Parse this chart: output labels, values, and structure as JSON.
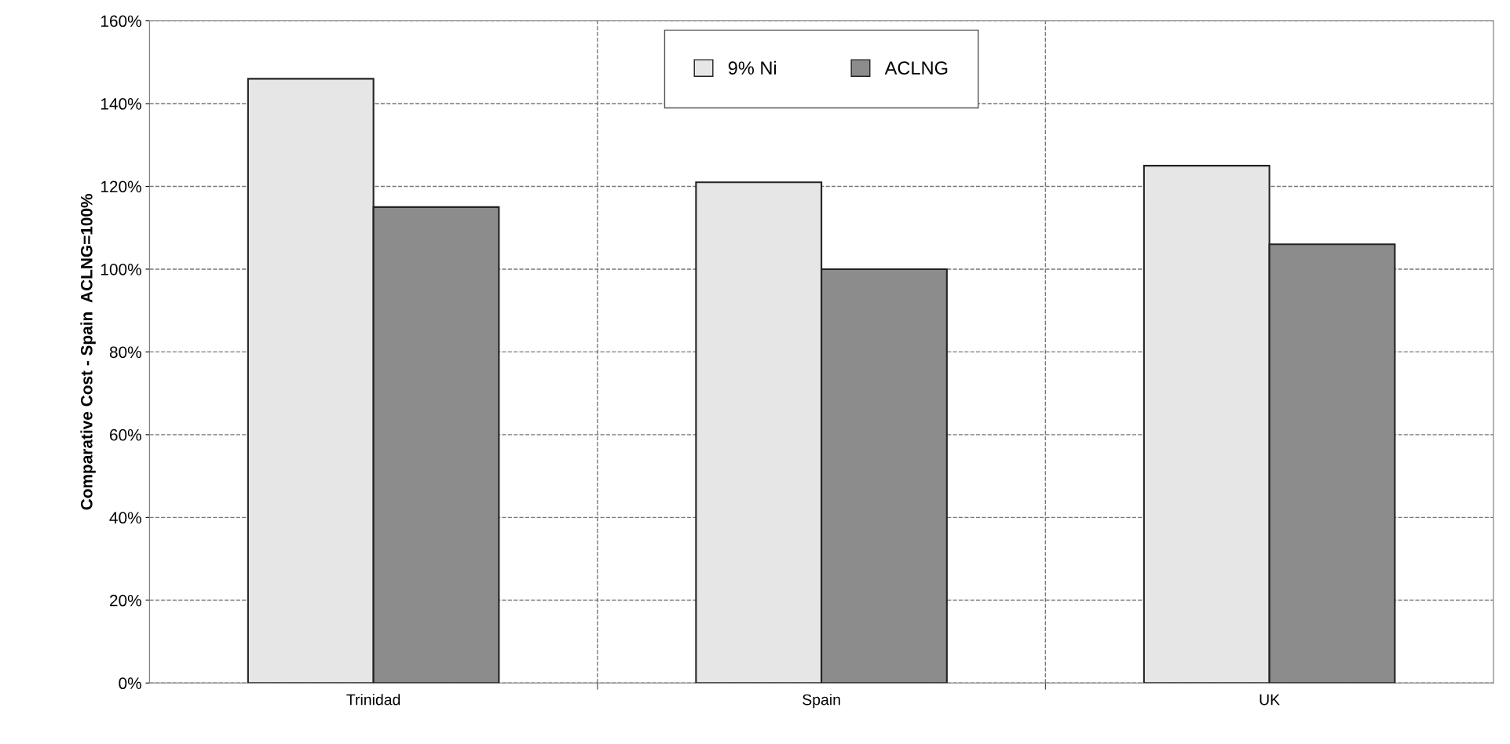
{
  "chart_data": {
    "type": "bar",
    "ylabel": "Comparative Cost - Spain  ACLNG=100%",
    "categories": [
      "Trinidad",
      "Spain",
      "UK"
    ],
    "series": [
      {
        "name": "9% Ni",
        "color": "#e6e6e6",
        "values": [
          146,
          121,
          125
        ]
      },
      {
        "name": "ACLNG",
        "color": "#8c8c8c",
        "values": [
          115,
          100,
          106
        ]
      }
    ],
    "ylim": [
      0,
      160
    ],
    "yticks": [
      {
        "value": 0,
        "label": "0%"
      },
      {
        "value": 20,
        "label": "20%"
      },
      {
        "value": 40,
        "label": "40%"
      },
      {
        "value": 60,
        "label": "60%"
      },
      {
        "value": 80,
        "label": "80%"
      },
      {
        "value": 100,
        "label": "100%"
      },
      {
        "value": 120,
        "label": "120%"
      },
      {
        "value": 140,
        "label": "140%"
      },
      {
        "value": 160,
        "label": "160%"
      }
    ],
    "grid": true,
    "legend": "top",
    "line_style": "dashed"
  }
}
